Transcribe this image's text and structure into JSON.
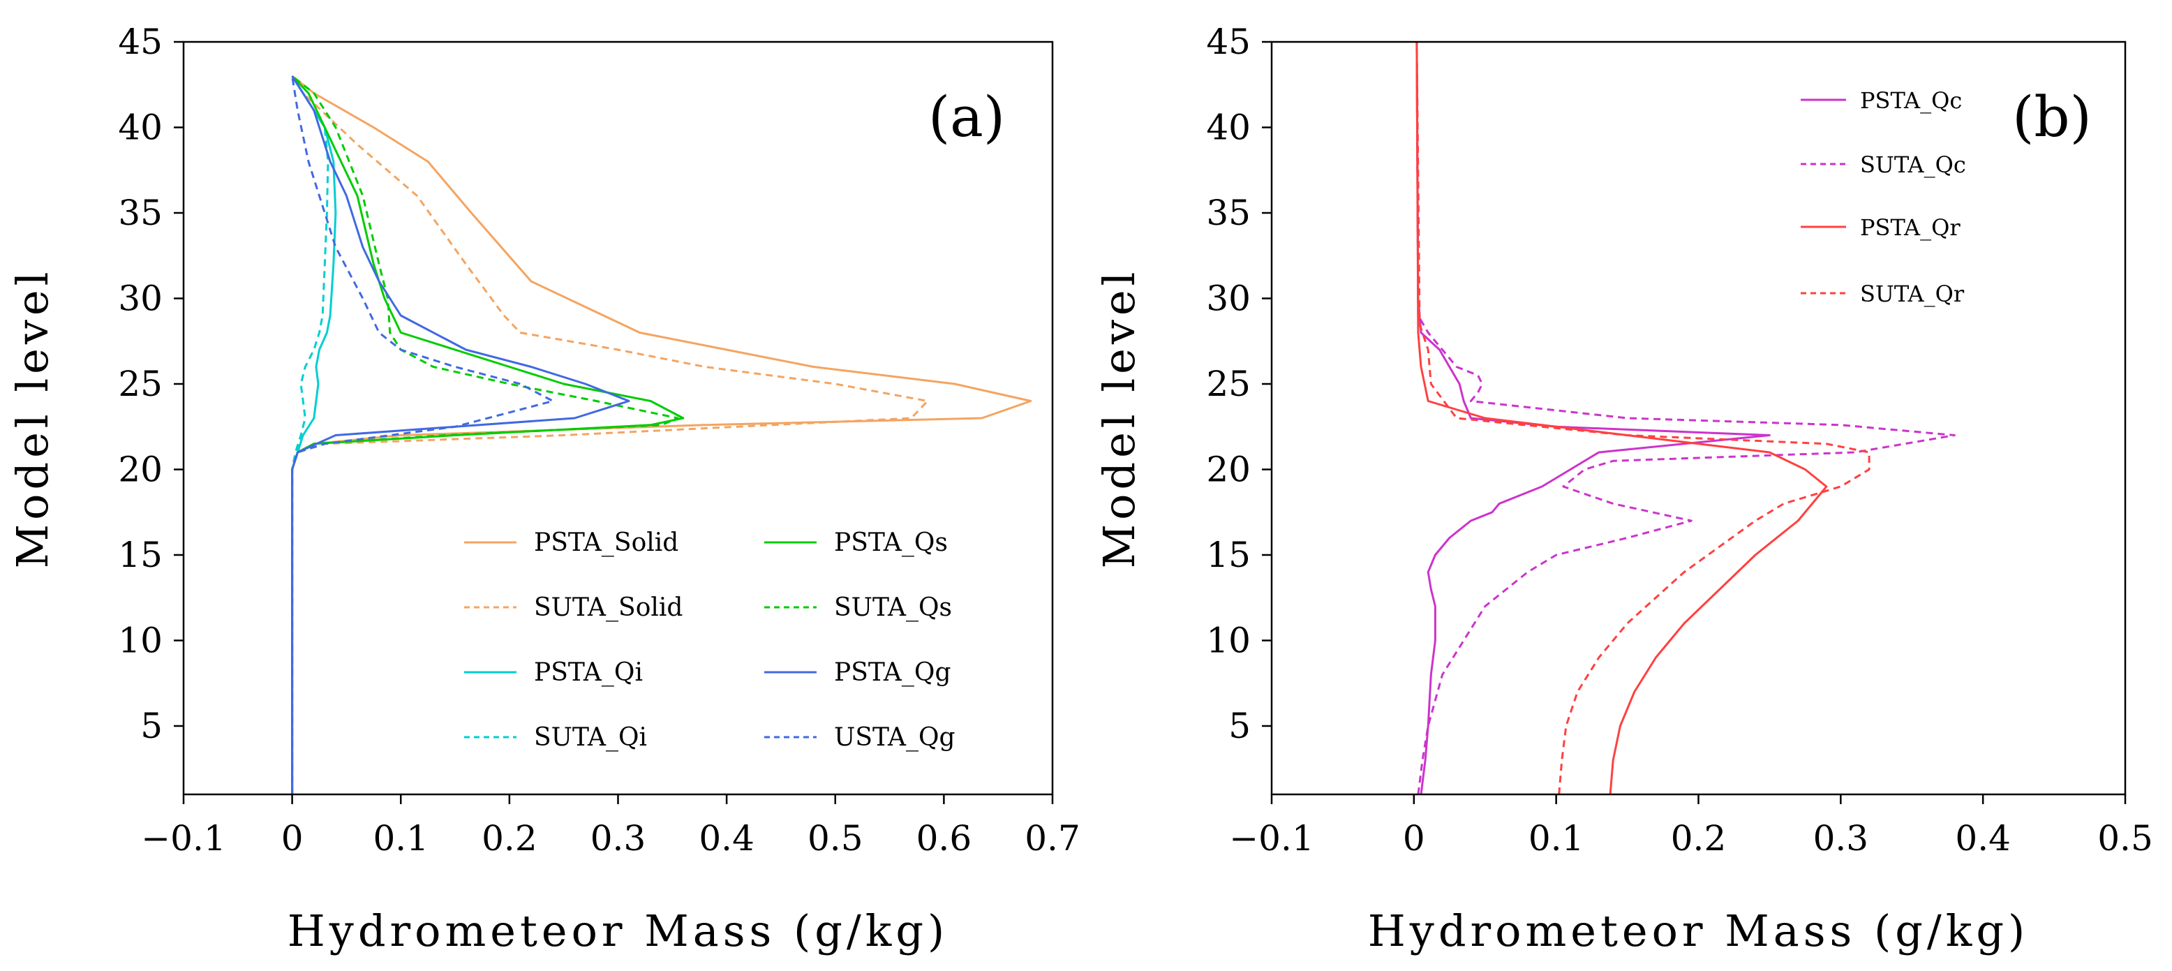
{
  "chart_data": [
    {
      "type": "line",
      "panel_label": "(a)",
      "xlabel": "Hydrometeor Mass (g/kg)",
      "ylabel": "Model level",
      "xlim": [
        -0.1,
        0.7
      ],
      "ylim": [
        1,
        45
      ],
      "xticks": [
        -0.1,
        0,
        0.1,
        0.2,
        0.3,
        0.4,
        0.5,
        0.6,
        0.7
      ],
      "xtick_labels": [
        "−0.1",
        "0",
        "0.1",
        "0.2",
        "0.3",
        "0.4",
        "0.5",
        "0.6",
        "0.7"
      ],
      "yticks": [
        5,
        10,
        15,
        20,
        25,
        30,
        35,
        40,
        45
      ],
      "ytick_labels": [
        "5",
        "10",
        "15",
        "20",
        "25",
        "30",
        "35",
        "40",
        "45"
      ],
      "legend": "lower-right",
      "series": [
        {
          "name": "PSTA_Solid",
          "color": "#F4A460",
          "dash": "solid",
          "x": [
            0,
            0,
            0.005,
            0.02,
            0.1,
            0.38,
            0.635,
            0.68,
            0.61,
            0.48,
            0.32,
            0.22,
            0.165,
            0.125,
            0.075,
            0.02,
            0
          ],
          "y": [
            1,
            20,
            21,
            21.5,
            22,
            22.6,
            23,
            24,
            25,
            26,
            28,
            31,
            35,
            38,
            40,
            42,
            43
          ]
        },
        {
          "name": "SUTA_Solid",
          "color": "#F4A460",
          "dash": "dash",
          "x": [
            0,
            0,
            0.005,
            0.03,
            0.25,
            0.57,
            0.585,
            0.5,
            0.38,
            0.3,
            0.21,
            0.195,
            0.16,
            0.115,
            0.06,
            0.01,
            0
          ],
          "y": [
            1,
            20,
            21,
            21.5,
            22,
            23,
            24,
            25,
            26,
            27,
            28,
            29,
            32,
            36,
            39,
            42,
            43
          ]
        },
        {
          "name": "PSTA_Qi",
          "color": "#00CED1",
          "dash": "solid",
          "x": [
            0,
            0,
            0.005,
            0.01,
            0.02,
            0.022,
            0.024,
            0.022,
            0.025,
            0.032,
            0.035,
            0.038,
            0.04,
            0.038,
            0.03,
            0.01,
            0
          ],
          "y": [
            1,
            20,
            21,
            22,
            23,
            24,
            25,
            26,
            27,
            28,
            29,
            32,
            35,
            38,
            40,
            42,
            43
          ]
        },
        {
          "name": "SUTA_Qi",
          "color": "#00CED1",
          "dash": "dash",
          "x": [
            0,
            0,
            0.003,
            0.008,
            0.012,
            0.01,
            0.008,
            0.012,
            0.02,
            0.025,
            0.028,
            0.03,
            0.032,
            0.033,
            0.03,
            0.01,
            0
          ],
          "y": [
            1,
            20,
            21,
            22,
            23,
            24,
            25,
            26,
            27,
            28,
            29,
            32,
            35,
            38,
            40,
            42,
            43
          ]
        },
        {
          "name": "PSTA_Qs",
          "color": "#00CC00",
          "dash": "solid",
          "x": [
            0,
            0,
            0.005,
            0.02,
            0.15,
            0.33,
            0.36,
            0.33,
            0.25,
            0.2,
            0.15,
            0.1,
            0.085,
            0.075,
            0.06,
            0.03,
            0.015,
            0
          ],
          "y": [
            1,
            20,
            21,
            21.5,
            22,
            22.6,
            23,
            24,
            25,
            26,
            27,
            28,
            30,
            32,
            36,
            40,
            42,
            43
          ]
        },
        {
          "name": "SUTA_Qs",
          "color": "#00CC00",
          "dash": "dash",
          "x": [
            0,
            0,
            0.005,
            0.02,
            0.14,
            0.34,
            0.355,
            0.28,
            0.2,
            0.13,
            0.1,
            0.09,
            0.088,
            0.08,
            0.065,
            0.04,
            0.02,
            0
          ],
          "y": [
            1,
            20,
            21,
            21.5,
            22,
            22.6,
            23,
            24,
            25,
            26,
            27,
            28,
            30,
            32,
            36,
            40,
            42,
            43
          ]
        },
        {
          "name": "PSTA_Qg",
          "color": "#4169E1",
          "dash": "solid",
          "x": [
            0,
            0,
            0.005,
            0.04,
            0.26,
            0.31,
            0.27,
            0.22,
            0.16,
            0.1,
            0.08,
            0.065,
            0.05,
            0.035,
            0.02,
            0
          ],
          "y": [
            1,
            20,
            21,
            22,
            23,
            24,
            25,
            26,
            27,
            29,
            31,
            33,
            36,
            38,
            41,
            43
          ]
        },
        {
          "name": "USTA_Qg",
          "color": "#4169E1",
          "dash": "dash",
          "x": [
            0,
            0,
            0.005,
            0.03,
            0.15,
            0.24,
            0.21,
            0.15,
            0.1,
            0.08,
            0.065,
            0.04,
            0.025,
            0.015,
            0.005,
            0
          ],
          "y": [
            1,
            20,
            21,
            21.5,
            22.5,
            24,
            25,
            26,
            27,
            28,
            30,
            33,
            36,
            38,
            41,
            43
          ]
        }
      ],
      "legend_entries": [
        "PSTA_Solid",
        "SUTA_Solid",
        "PSTA_Qi",
        "SUTA_Qi",
        "PSTA_Qs",
        "SUTA_Qs",
        "PSTA_Qg",
        "USTA_Qg"
      ]
    },
    {
      "type": "line",
      "panel_label": "(b)",
      "xlabel": "Hydrometeor Mass (g/kg)",
      "ylabel": "Model level",
      "xlim": [
        -0.1,
        0.5
      ],
      "ylim": [
        1,
        45
      ],
      "xticks": [
        -0.1,
        0,
        0.1,
        0.2,
        0.3,
        0.4,
        0.5
      ],
      "xtick_labels": [
        "−0.1",
        "0",
        "0.1",
        "0.2",
        "0.3",
        "0.4",
        "0.5"
      ],
      "yticks": [
        5,
        10,
        15,
        20,
        25,
        30,
        35,
        40,
        45
      ],
      "ytick_labels": [
        "5",
        "10",
        "15",
        "20",
        "25",
        "30",
        "35",
        "40",
        "45"
      ],
      "legend": "top-right",
      "series": [
        {
          "name": "PSTA_Qc",
          "color": "#CC33CC",
          "dash": "solid",
          "x": [
            0.005,
            0.008,
            0.01,
            0.012,
            0.015,
            0.015,
            0.012,
            0.01,
            0.015,
            0.025,
            0.04,
            0.055,
            0.06,
            0.09,
            0.11,
            0.13,
            0.25,
            0.1,
            0.04,
            0.035,
            0.032,
            0.018,
            0.005,
            0.003,
            0.002
          ],
          "y": [
            1,
            3,
            5,
            8,
            10,
            12,
            13,
            14,
            15,
            16,
            17,
            17.5,
            18,
            19,
            20,
            21,
            22,
            22.5,
            23,
            24,
            25,
            27,
            28,
            30,
            45
          ]
        },
        {
          "name": "SUTA_Qc",
          "color": "#CC33CC",
          "dash": "dash",
          "x": [
            0.003,
            0.006,
            0.01,
            0.02,
            0.035,
            0.05,
            0.065,
            0.08,
            0.1,
            0.15,
            0.195,
            0.14,
            0.105,
            0.12,
            0.14,
            0.31,
            0.38,
            0.3,
            0.15,
            0.04,
            0.045,
            0.048,
            0.045,
            0.03,
            0.01,
            0.003,
            0.002
          ],
          "y": [
            1,
            3,
            5,
            8,
            10,
            12,
            13,
            14,
            15,
            16,
            17,
            18,
            19,
            20,
            20.5,
            21,
            22,
            22.6,
            23,
            24,
            24.5,
            25,
            25.5,
            26,
            28,
            29,
            45
          ]
        },
        {
          "name": "PSTA_Qr",
          "color": "#FF4040",
          "dash": "solid",
          "x": [
            0.138,
            0.14,
            0.145,
            0.155,
            0.17,
            0.19,
            0.215,
            0.24,
            0.27,
            0.29,
            0.275,
            0.25,
            0.15,
            0.05,
            0.01,
            0.005,
            0.003,
            0.002
          ],
          "y": [
            1,
            3,
            5,
            7,
            9,
            11,
            13,
            15,
            17,
            19,
            20,
            21,
            22,
            23,
            24,
            26,
            28,
            45
          ]
        },
        {
          "name": "SUTA_Qr",
          "color": "#FF4040",
          "dash": "dash",
          "x": [
            0.102,
            0.104,
            0.107,
            0.115,
            0.13,
            0.15,
            0.19,
            0.24,
            0.26,
            0.3,
            0.32,
            0.32,
            0.29,
            0.15,
            0.03,
            0.012,
            0.01,
            0.004,
            0.002
          ],
          "y": [
            1,
            3,
            5,
            7,
            9,
            11,
            14,
            17,
            18,
            19,
            20,
            21,
            21.5,
            22,
            23,
            25,
            27,
            28.5,
            45
          ]
        }
      ],
      "legend_entries": [
        "PSTA_Qc",
        "SUTA_Qc",
        "PSTA_Qr",
        "SUTA_Qr"
      ]
    }
  ]
}
